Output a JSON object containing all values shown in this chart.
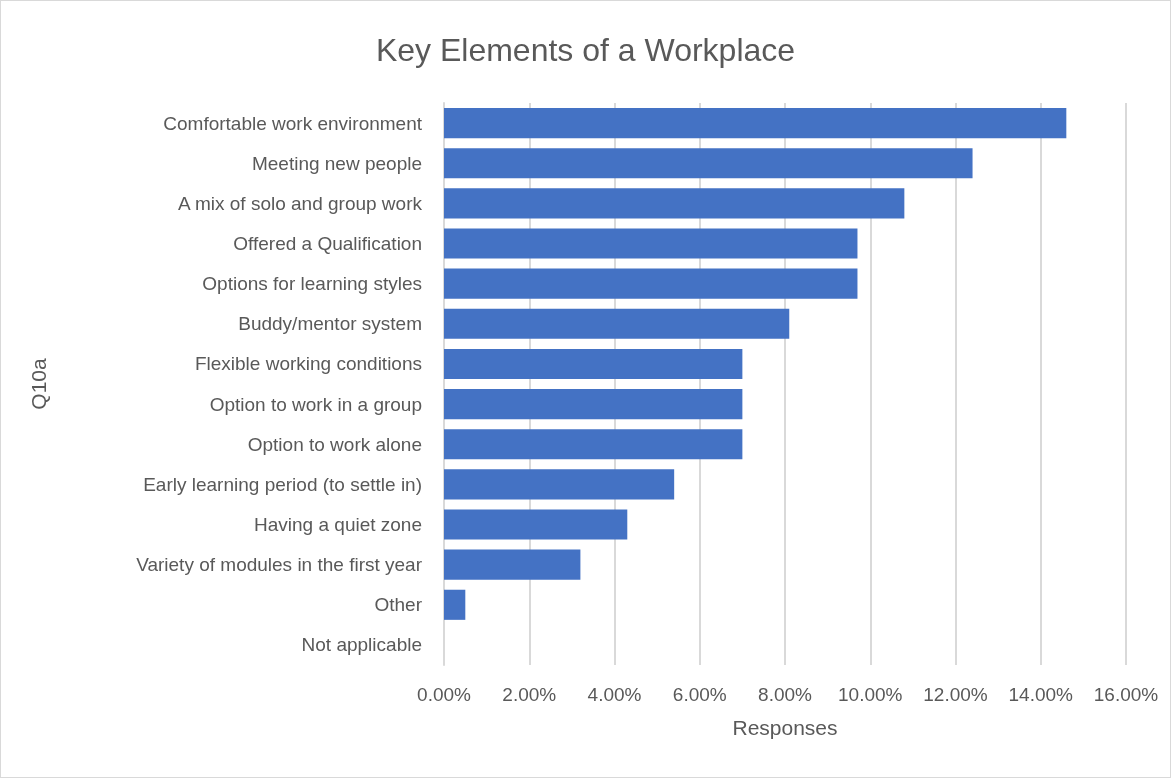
{
  "chart_data": {
    "type": "bar",
    "orientation": "horizontal",
    "title": "Key Elements of a Workplace",
    "xlabel": "Responses",
    "ylabel": "Q10a",
    "categories": [
      "Comfortable work environment",
      "Meeting new people",
      "A mix of solo and group work",
      "Offered a Qualification",
      "Options for learning styles",
      "Buddy/mentor system",
      "Flexible working conditions",
      "Option to work in a group",
      "Option to work alone",
      "Early learning period (to settle in)",
      "Having a quiet zone",
      "Variety of modules in the first year",
      "Other",
      "Not applicable"
    ],
    "values": [
      14.6,
      12.4,
      10.8,
      9.7,
      9.7,
      8.1,
      7.0,
      7.0,
      7.0,
      5.4,
      4.3,
      3.2,
      0.5,
      0
    ],
    "color": "#4472c4",
    "xlim": [
      0,
      16
    ],
    "xticks": [
      {
        "value": 0,
        "label": "0.00%"
      },
      {
        "value": 2,
        "label": "2.00%"
      },
      {
        "value": 4,
        "label": "4.00%"
      },
      {
        "value": 6,
        "label": "6.00%"
      },
      {
        "value": 8,
        "label": "8.00%"
      },
      {
        "value": 10,
        "label": "10.00%"
      },
      {
        "value": 12,
        "label": "12.00%"
      },
      {
        "value": 14,
        "label": "14.00%"
      },
      {
        "value": 16,
        "label": "16.00%"
      }
    ],
    "grid": "x"
  }
}
